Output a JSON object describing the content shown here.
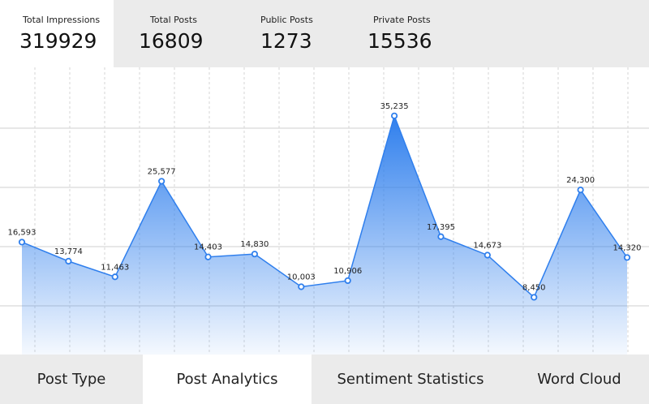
{
  "stats": [
    {
      "label": "Total Impressions",
      "value": 319929
    },
    {
      "label": "Total Posts",
      "value": 16809
    },
    {
      "label": "Public Posts",
      "value": 1273
    },
    {
      "label": "Private Posts",
      "value": 15536
    }
  ],
  "chart_data": {
    "type": "area",
    "color": "#2f7fed",
    "values": [
      16593,
      13774,
      11463,
      25577,
      14403,
      14830,
      10003,
      10906,
      35235,
      17395,
      14673,
      8450,
      24300,
      14320
    ],
    "value_labels": [
      "16,593",
      "13,774",
      "11,463",
      "25,577",
      "14,403",
      "14,830",
      "10,003",
      "10,906",
      "35,235",
      "17,395",
      "14,673",
      "8,450",
      "24,300",
      "14,320"
    ],
    "ylim": [
      0,
      40000
    ]
  },
  "tabs": [
    "Post Type",
    "Post Analytics",
    "Sentiment Statistics",
    "Word Cloud"
  ]
}
